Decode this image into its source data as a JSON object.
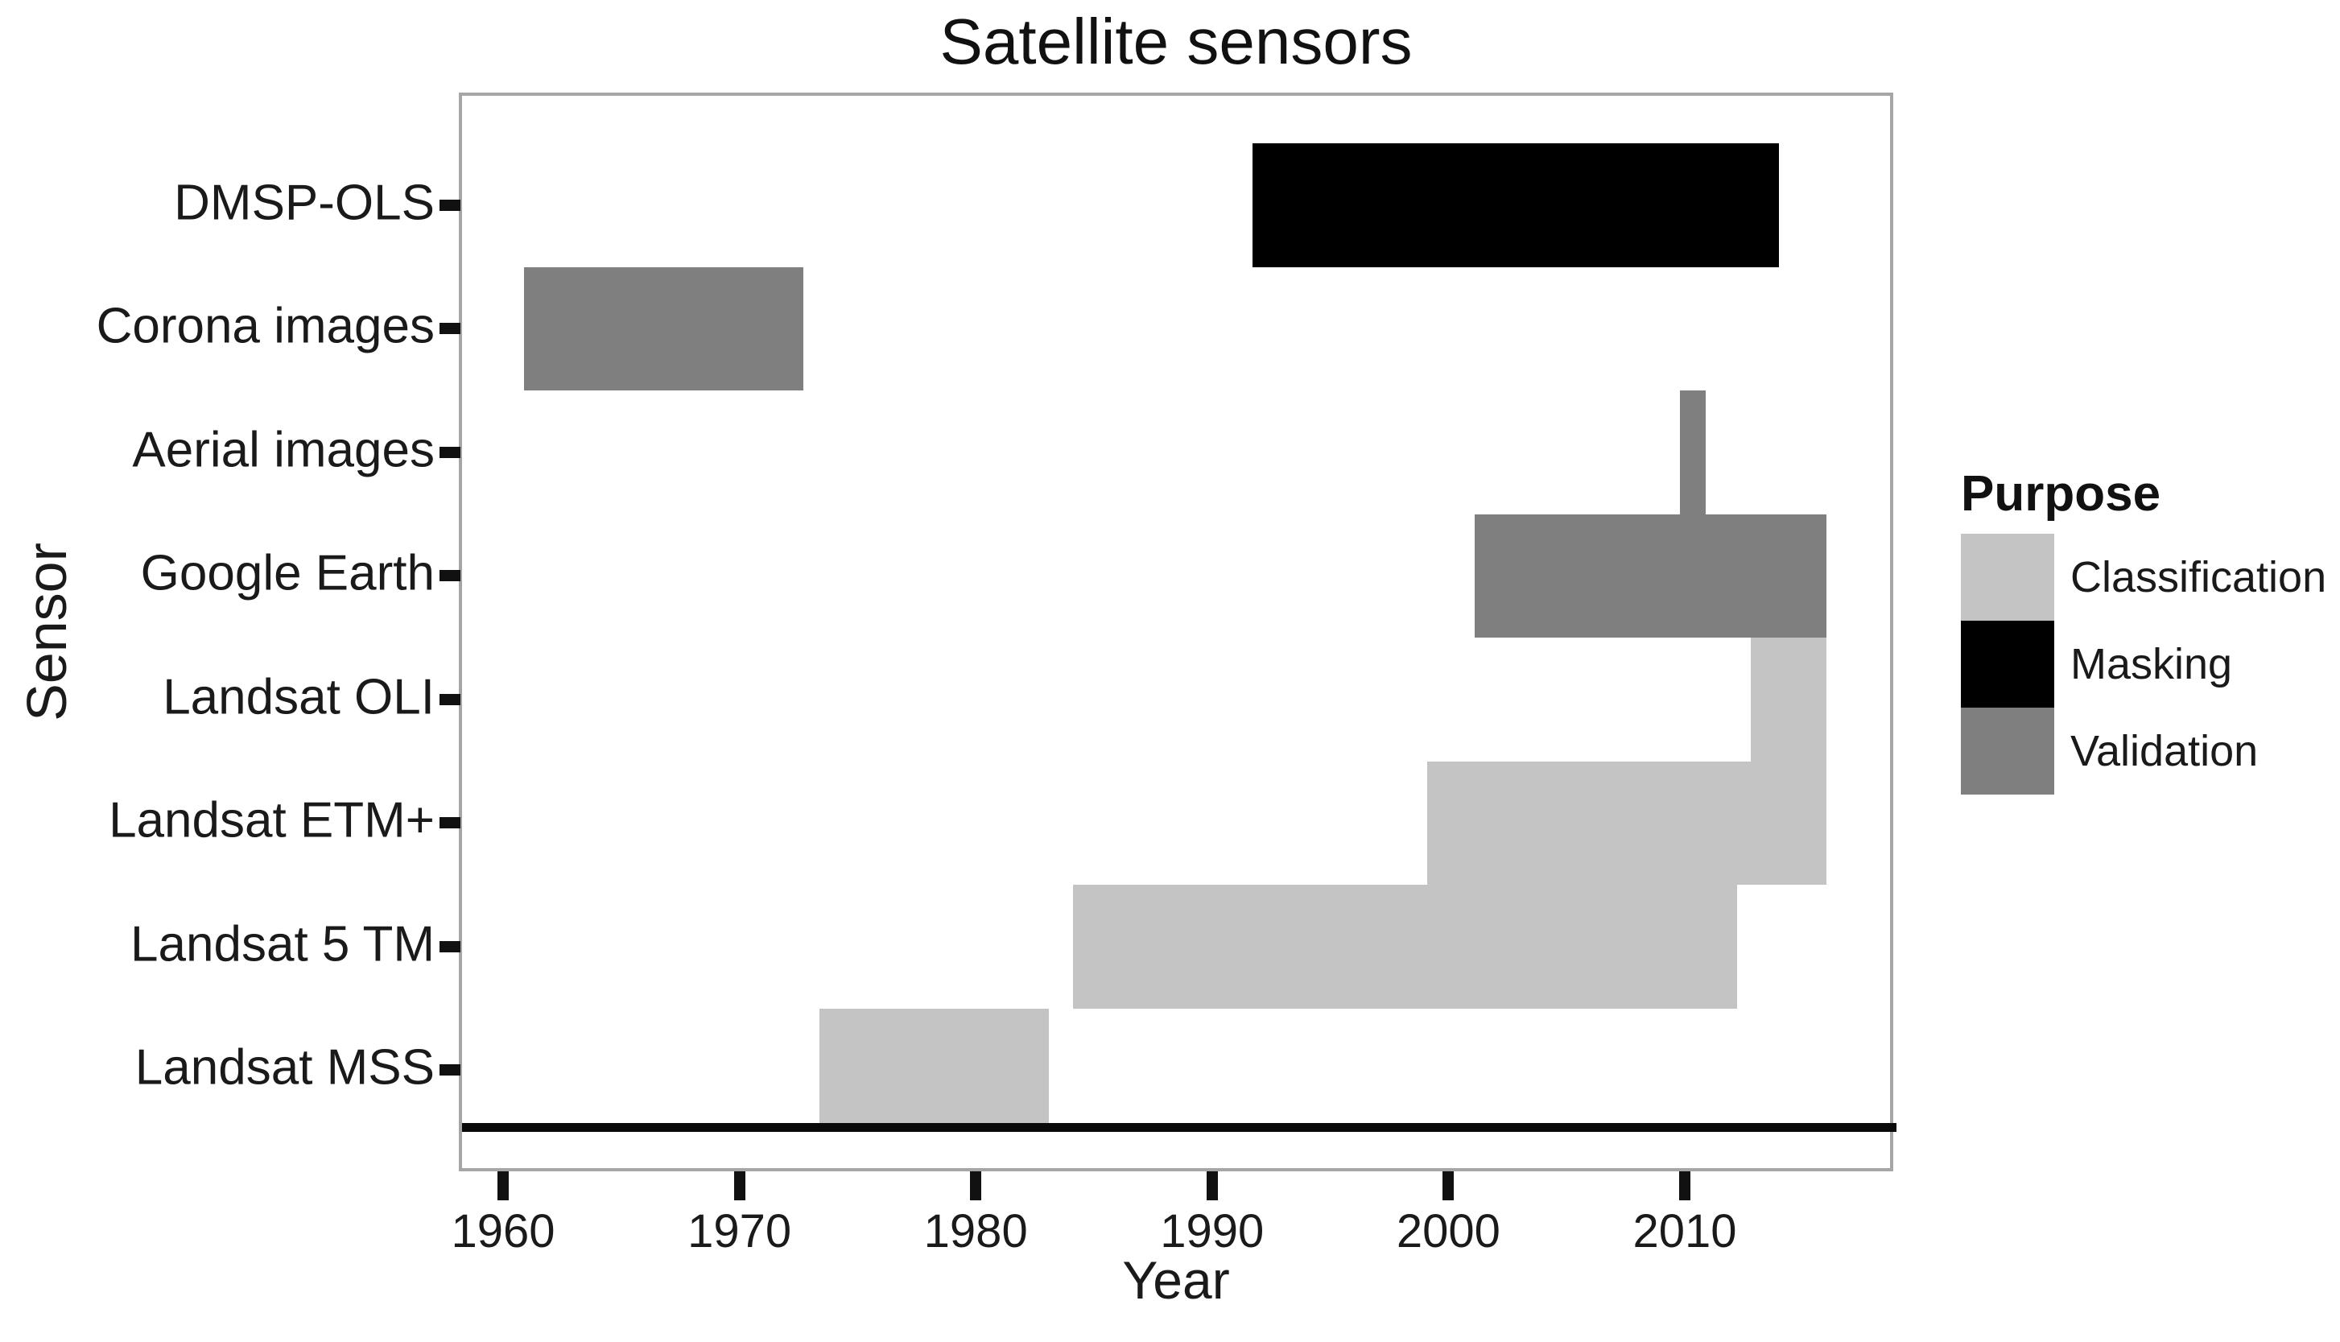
{
  "chart_data": {
    "type": "bar",
    "variant": "horizontal-interval-gantt",
    "title": "Satellite sensors",
    "xlabel": "Year",
    "ylabel": "Sensor",
    "xlim": [
      1958.1,
      2018.8
    ],
    "x_ticks": [
      1960,
      1970,
      1980,
      1990,
      2000,
      2010
    ],
    "grid": "off",
    "legend_position": "right",
    "sensors": [
      "DMSP-OLS",
      "Corona images",
      "Aerial images",
      "Google Earth",
      "Landsat OLI",
      "Landsat ETM+",
      "Landsat 5 TM",
      "Landsat MSS"
    ],
    "bars": [
      {
        "sensor": "DMSP-OLS",
        "start": 1991.7,
        "end": 2014.0,
        "purpose": "Masking"
      },
      {
        "sensor": "Corona images",
        "start": 1960.9,
        "end": 1972.7,
        "purpose": "Validation"
      },
      {
        "sensor": "Aerial images",
        "start": 2009.8,
        "end": 2010.9,
        "purpose": "Validation"
      },
      {
        "sensor": "Google Earth",
        "start": 2001.1,
        "end": 2016.0,
        "purpose": "Validation"
      },
      {
        "sensor": "Landsat OLI",
        "start": 2012.8,
        "end": 2016.0,
        "purpose": "Classification"
      },
      {
        "sensor": "Landsat ETM+",
        "start": 1999.1,
        "end": 2016.0,
        "purpose": "Classification"
      },
      {
        "sensor": "Landsat 5 TM",
        "start": 1984.1,
        "end": 2012.2,
        "purpose": "Classification"
      },
      {
        "sensor": "Landsat MSS",
        "start": 1973.4,
        "end": 1983.1,
        "purpose": "Classification"
      }
    ],
    "legend": {
      "title": "Purpose",
      "entries": [
        {
          "label": "Classification",
          "color": "#c4c4c4"
        },
        {
          "label": "Masking",
          "color": "#000000"
        },
        {
          "label": "Validation",
          "color": "#7f7f7f"
        }
      ]
    },
    "styles": {
      "panel_border": "#a6a6a6",
      "baseline": "#0a0a0a",
      "tick_mark": "#111111",
      "text": "#1a1a1a",
      "background": "#ffffff"
    }
  }
}
